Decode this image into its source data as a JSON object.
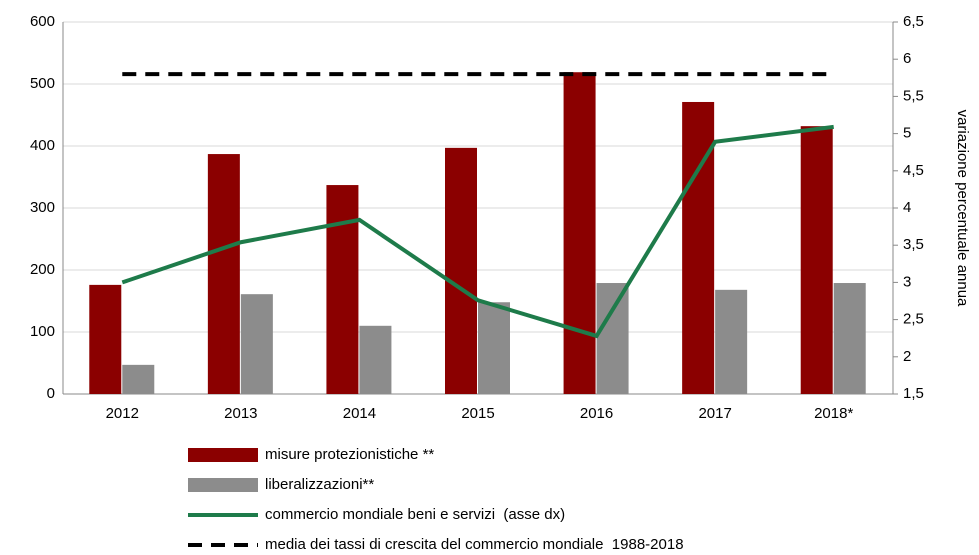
{
  "chart_data": {
    "type": "bar",
    "categories": [
      "2012",
      "2013",
      "2014",
      "2015",
      "2016",
      "2017",
      "2018*"
    ],
    "y2_label": "variazione percentuale annua",
    "ylim": [
      0,
      600
    ],
    "yticks": [
      0,
      100,
      200,
      300,
      400,
      500,
      600
    ],
    "y2lim": [
      1.5,
      6.5
    ],
    "y2ticks": [
      {
        "value": 1.5,
        "label": "1,5"
      },
      2,
      {
        "value": 2.5,
        "label": "2,5"
      },
      3,
      {
        "value": 3.5,
        "label": "3,5"
      },
      4,
      {
        "value": 4.5,
        "label": "4,5"
      },
      5,
      {
        "value": 5.5,
        "label": "5,5"
      },
      6,
      {
        "value": 6.5,
        "label": "6,5"
      }
    ],
    "grid": true,
    "series": [
      {
        "name": "misure protezionistiche **",
        "type": "bar",
        "color": "#8b0000",
        "values": [
          176,
          387,
          337,
          397,
          519,
          471,
          432
        ]
      },
      {
        "name": "liberalizzazioni**",
        "type": "bar",
        "color": "#8c8c8c",
        "values": [
          47,
          161,
          110,
          148,
          179,
          168,
          179
        ]
      },
      {
        "name": "commercio mondiale beni e servizi  (asse dx)",
        "type": "line",
        "axis": "y2",
        "color": "#1e7b4a",
        "values": [
          3.0,
          3.54,
          3.84,
          2.76,
          2.28,
          4.89,
          5.09
        ]
      },
      {
        "name": "media dei tassi di crescita del commercio mondiale  1988-2018",
        "type": "line",
        "axis": "y2",
        "dash": true,
        "color": "#000000",
        "values": [
          5.8,
          5.8,
          5.8,
          5.8,
          5.8,
          5.8,
          5.8
        ]
      }
    ]
  }
}
